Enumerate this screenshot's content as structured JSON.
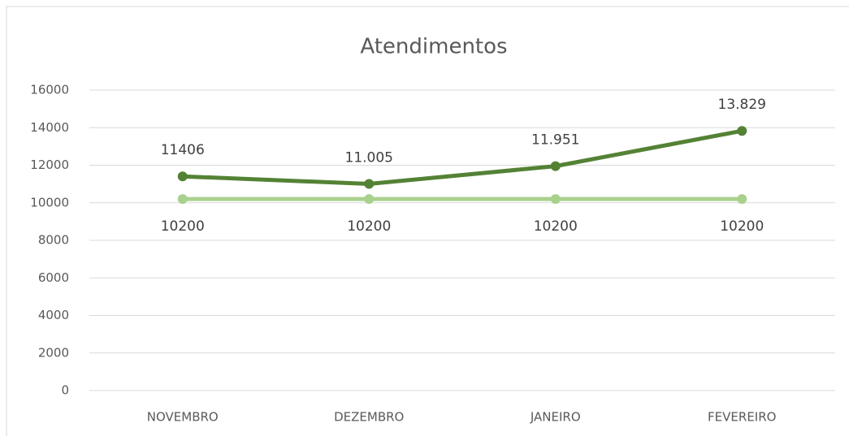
{
  "chart_data": {
    "type": "line",
    "title": "Atendimentos",
    "categories": [
      "NOVEMBRO",
      "DEZEMBRO",
      "JANEIRO",
      "FEVEREIRO"
    ],
    "series": [
      {
        "color": "#548235",
        "values": [
          11406,
          11005,
          11951,
          13829
        ],
        "value_labels": [
          "11406",
          "11.005",
          "11.951",
          "13.829"
        ]
      },
      {
        "color": "#a9d18e",
        "values": [
          10200,
          10200,
          10200,
          10200
        ]
      }
    ],
    "ylim": [
      0,
      16000
    ],
    "yticks": [
      0,
      2000,
      4000,
      6000,
      8000,
      10000,
      12000,
      14000,
      16000
    ],
    "grid": true
  }
}
